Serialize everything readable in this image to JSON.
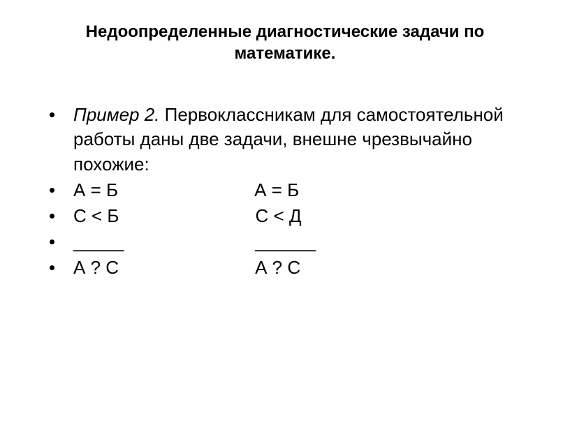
{
  "title": "Недоопределенные диагностические задачи по математике.",
  "intro_label": "Пример 2.",
  "intro_text": " Первоклассникам для самостоятельной работы даны две задачи, внешне чрезвычайно похожие:",
  "rows": [
    {
      "left": "А = Б",
      "right": "А = Б"
    },
    {
      "left": "С < Б",
      "right": "С < Д"
    },
    {
      "left": "_____",
      "right": "______"
    },
    {
      "left": "А ? С",
      "right": "А ? С"
    }
  ],
  "colors": {
    "background": "#ffffff",
    "text": "#000000"
  },
  "font": {
    "family": "Arial",
    "title_size": 24,
    "body_size": 26
  }
}
